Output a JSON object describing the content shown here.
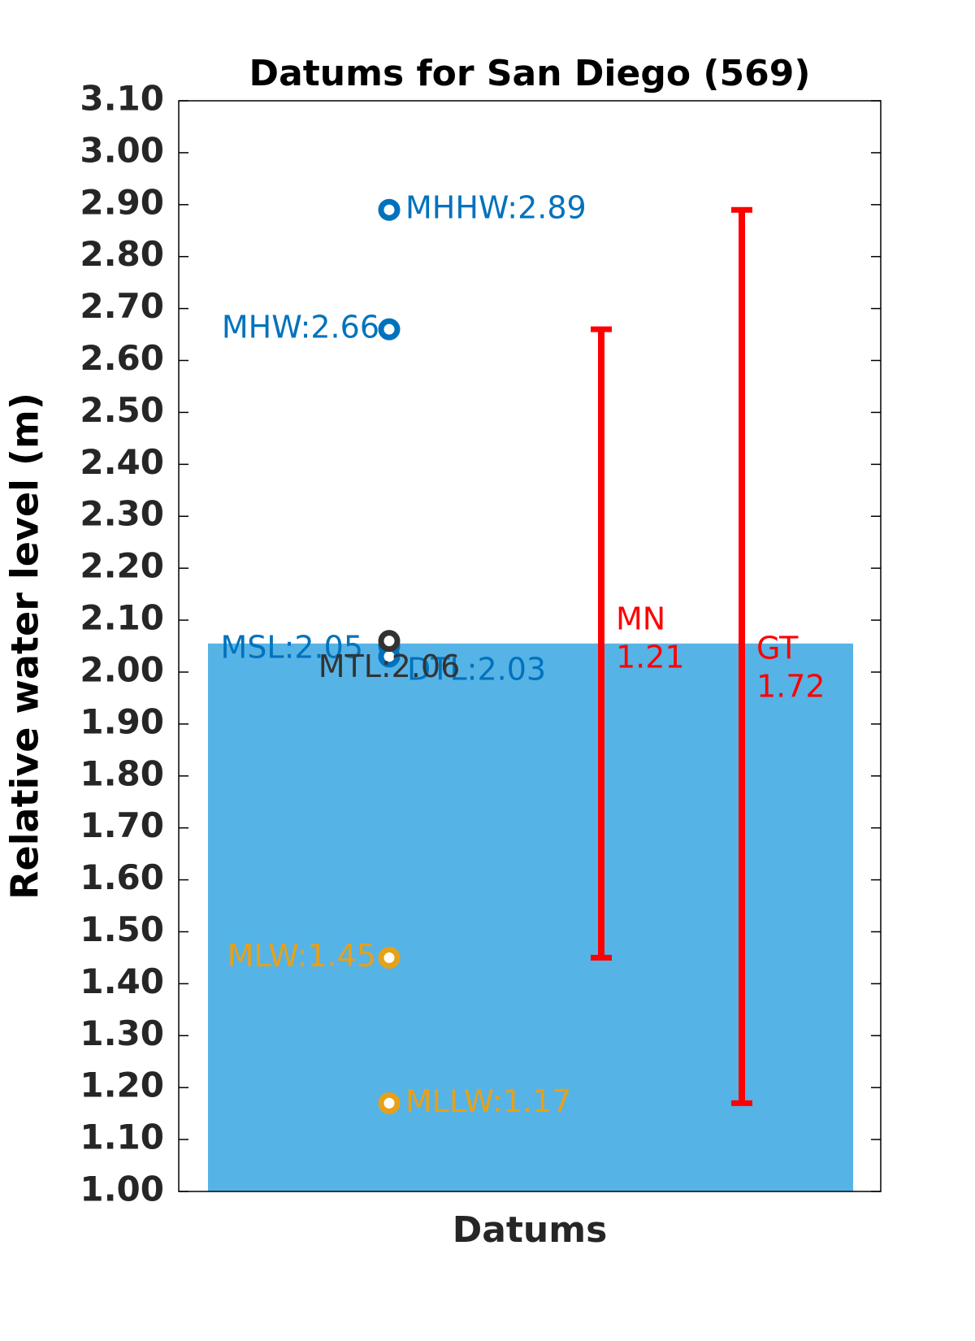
{
  "chart_data": {
    "type": "datum",
    "title": "Datums for San Diego (569)",
    "y_label": "Relative water level (m)",
    "x_label": "Datums",
    "ylim": [
      1,
      3.1
    ],
    "yticks": [
      {
        "value": 1,
        "label": "1.00"
      },
      {
        "value": 1.1,
        "label": "1.10"
      },
      {
        "value": 1.2,
        "label": "1.20"
      },
      {
        "value": 1.3,
        "label": "1.30"
      },
      {
        "value": 1.4,
        "label": "1.40"
      },
      {
        "value": 1.5,
        "label": "1.50"
      },
      {
        "value": 1.6,
        "label": "1.60"
      },
      {
        "value": 1.7,
        "label": "1.70"
      },
      {
        "value": 1.8,
        "label": "1.80"
      },
      {
        "value": 1.9,
        "label": "1.90"
      },
      {
        "value": 2,
        "label": "2.00"
      },
      {
        "value": 2.1,
        "label": "2.10"
      },
      {
        "value": 2.2,
        "label": "2.20"
      },
      {
        "value": 2.3,
        "label": "2.30"
      },
      {
        "value": 2.4,
        "label": "2.40"
      },
      {
        "value": 2.5,
        "label": "2.50"
      },
      {
        "value": 2.6,
        "label": "2.60"
      },
      {
        "value": 2.7,
        "label": "2.70"
      },
      {
        "value": 2.8,
        "label": "2.80"
      },
      {
        "value": 2.9,
        "label": "2.90"
      },
      {
        "value": 3,
        "label": "3.00"
      },
      {
        "value": 3.1,
        "label": "3.10"
      }
    ],
    "bar": {
      "value": 2.055,
      "color": "#56b3e6"
    },
    "datums": [
      {
        "label": "MHHW:2.89",
        "value": 2.89,
        "color": "#0072bd"
      },
      {
        "label": "MHW:2.66",
        "value": 2.66,
        "color": "#0072bd"
      },
      {
        "label": "MSL:2.05",
        "value": 2.05,
        "color": "#0072bd"
      },
      {
        "label": "DTL:2.03",
        "value": 2.03,
        "color": "#0072bd"
      },
      {
        "label": "MTL:2.06",
        "value": 2.06,
        "color": "#333333"
      },
      {
        "label": "MLW:1.45",
        "value": 1.45,
        "color": "#e6a11a"
      },
      {
        "label": "MLLW:1.17",
        "value": 1.17,
        "color": "#e6a11a"
      }
    ],
    "ranges": [
      {
        "name": "MN",
        "value": 1.21,
        "low": 1.45,
        "high": 2.66,
        "color": "#ff0000"
      },
      {
        "name": "GT",
        "value": 1.72,
        "low": 1.17,
        "high": 2.89,
        "color": "#ff0000"
      }
    ]
  }
}
